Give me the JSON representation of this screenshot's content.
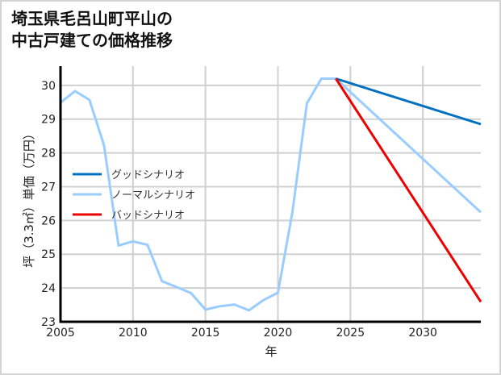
{
  "title_lines": [
    "埼玉県毛呂山町平山の",
    "中古戸建ての価格推移"
  ],
  "chart_data": {
    "type": "line",
    "title": "埼玉県毛呂山町平山の中古戸建ての価格推移",
    "xlabel": "年",
    "ylabel": "坪（3.3㎡）単価（万円）",
    "xlim": [
      2005,
      2034
    ],
    "ylim": [
      23,
      30.57
    ],
    "xticks": [
      2005,
      2010,
      2015,
      2020,
      2025,
      2030
    ],
    "yticks": [
      23,
      24,
      25,
      26,
      27,
      28,
      29,
      30
    ],
    "grid": true,
    "legend_position": "center-left",
    "series": [
      {
        "name": "グッドシナリオ",
        "color": "#0070c0",
        "x": [
          2024,
          2034
        ],
        "values": [
          30.2,
          28.85
        ]
      },
      {
        "name": "ノーマルシナリオ",
        "color": "#99ccff",
        "x": [
          2005,
          2006,
          2007,
          2008,
          2009,
          2010,
          2011,
          2012,
          2013,
          2014,
          2015,
          2016,
          2017,
          2018,
          2019,
          2020,
          2021,
          2022,
          2023,
          2024,
          2034
        ],
        "values": [
          29.49,
          29.83,
          29.57,
          28.23,
          25.26,
          25.38,
          25.28,
          24.2,
          24.03,
          23.85,
          23.36,
          23.46,
          23.51,
          23.34,
          23.64,
          23.86,
          26.24,
          29.47,
          30.2,
          30.2,
          26.24
        ]
      },
      {
        "name": "バッドシナリオ",
        "color": "#ee0000",
        "x": [
          2024,
          2034
        ],
        "values": [
          30.2,
          23.59
        ]
      }
    ]
  }
}
